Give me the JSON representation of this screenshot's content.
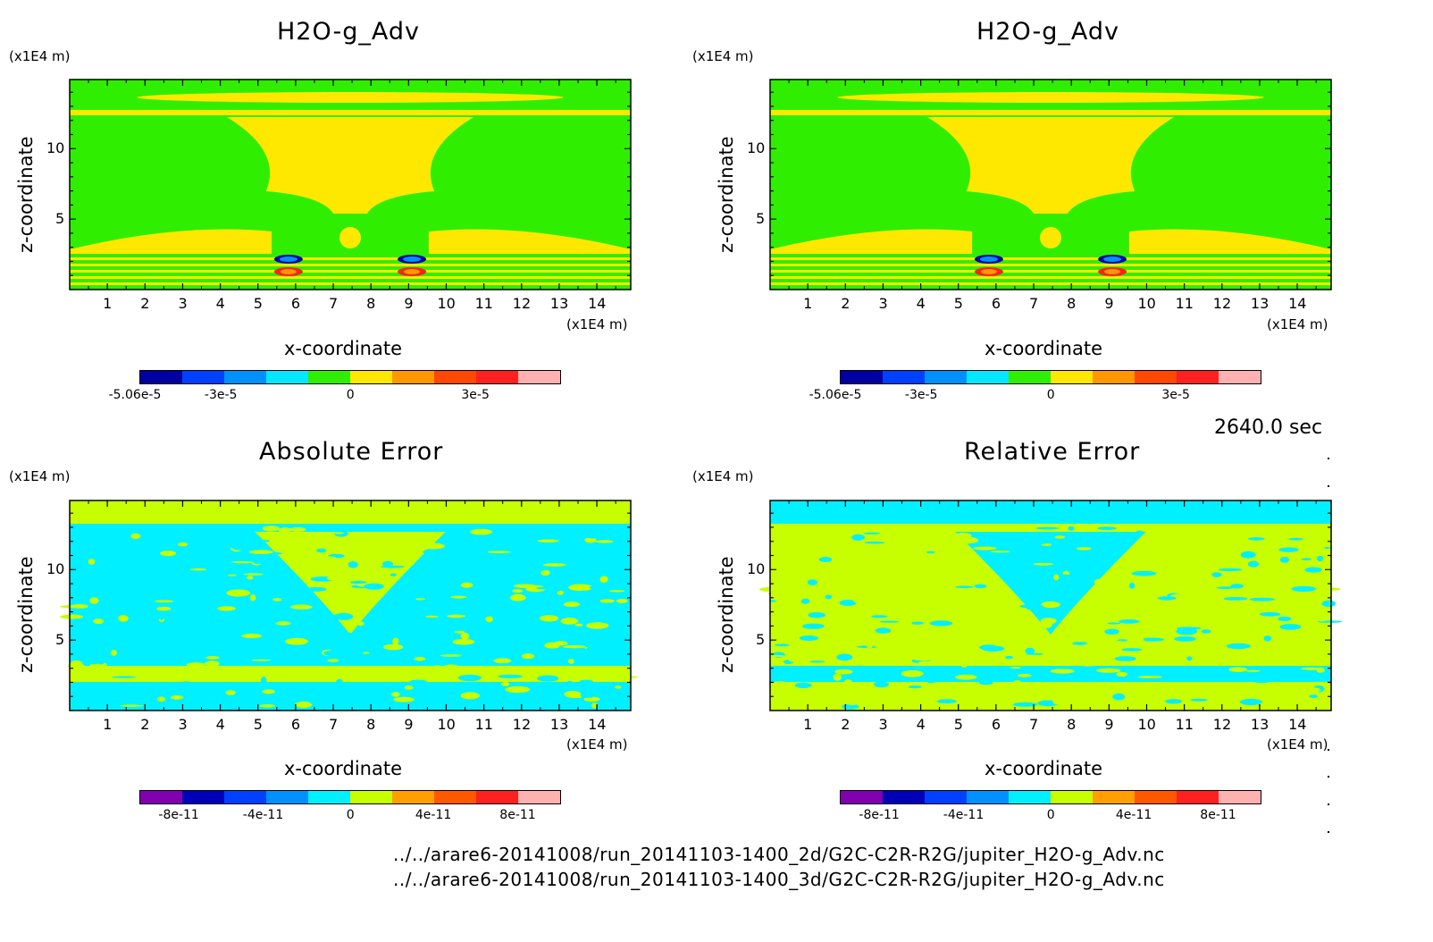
{
  "chart_data": [
    {
      "type": "heatmap",
      "title": "H2O-g_Adv",
      "xlabel": "x-coordinate",
      "ylabel": "z-coordinate",
      "xunit": "(x1E4 m)",
      "zunit": "(x1E4 m)",
      "xlim": [
        0,
        14.9
      ],
      "zlim": [
        0,
        14.9
      ],
      "xticks": [
        "1",
        "2",
        "3",
        "4",
        "5",
        "6",
        "7",
        "8",
        "9",
        "10",
        "11",
        "12",
        "13",
        "14"
      ],
      "zticks": [
        "5",
        "10"
      ],
      "colorbar": {
        "ticks": [
          "-5.06e-5",
          "-3e-5",
          "0",
          "3e-5"
        ],
        "colors": [
          "#0000a0",
          "#0040ff",
          "#0090ff",
          "#00e8ff",
          "#30ee00",
          "#ffe800",
          "#ff9800",
          "#ff4800",
          "#ff2020",
          "#ffb0b0"
        ]
      }
    },
    {
      "type": "heatmap",
      "title": "H2O-g_Adv",
      "xlabel": "x-coordinate",
      "ylabel": "z-coordinate",
      "xunit": "(x1E4 m)",
      "zunit": "(x1E4 m)",
      "xlim": [
        0,
        14.9
      ],
      "zlim": [
        0,
        14.9
      ],
      "xticks": [
        "1",
        "2",
        "3",
        "4",
        "5",
        "6",
        "7",
        "8",
        "9",
        "10",
        "11",
        "12",
        "13",
        "14"
      ],
      "zticks": [
        "5",
        "10"
      ],
      "colorbar": {
        "ticks": [
          "-5.06e-5",
          "-3e-5",
          "0",
          "3e-5"
        ],
        "colors": [
          "#0000a0",
          "#0040ff",
          "#0090ff",
          "#00e8ff",
          "#30ee00",
          "#ffe800",
          "#ff9800",
          "#ff4800",
          "#ff2020",
          "#ffb0b0"
        ]
      }
    },
    {
      "type": "heatmap",
      "title": "Absolute Error",
      "xlabel": "x-coordinate",
      "ylabel": "z-coordinate",
      "xunit": "(x1E4 m)",
      "zunit": "(x1E4 m)",
      "xlim": [
        0,
        14.9
      ],
      "zlim": [
        0,
        14.9
      ],
      "xticks": [
        "1",
        "2",
        "3",
        "4",
        "5",
        "6",
        "7",
        "8",
        "9",
        "10",
        "11",
        "12",
        "13",
        "14"
      ],
      "zticks": [
        "5",
        "10"
      ],
      "colorbar": {
        "ticks": [
          "-8e-11",
          "-4e-11",
          "0",
          "4e-11",
          "8e-11"
        ],
        "colors": [
          "#8000b0",
          "#0000b8",
          "#0040ff",
          "#0090ff",
          "#00f0ff",
          "#c8ff00",
          "#ffa000",
          "#ff5800",
          "#ff2020",
          "#ffb0b0"
        ]
      }
    },
    {
      "type": "heatmap",
      "title": "Relative Error",
      "xlabel": "x-coordinate",
      "ylabel": "z-coordinate",
      "xunit": "(x1E4 m)",
      "zunit": "(x1E4 m)",
      "xlim": [
        0,
        14.9
      ],
      "zlim": [
        0,
        14.9
      ],
      "xticks": [
        "1",
        "2",
        "3",
        "4",
        "5",
        "6",
        "7",
        "8",
        "9",
        "10",
        "11",
        "12",
        "13",
        "14"
      ],
      "zticks": [
        "5",
        "10"
      ],
      "colorbar": {
        "ticks": [
          "-8e-11",
          "-4e-11",
          "0",
          "4e-11",
          "8e-11"
        ],
        "colors": [
          "#8000b0",
          "#0000b8",
          "#0040ff",
          "#0090ff",
          "#00f0ff",
          "#c8ff00",
          "#ffa000",
          "#ff5800",
          "#ff2020",
          "#ffb0b0"
        ]
      }
    }
  ],
  "time_label": "2640.0 sec",
  "files": [
    "../../arare6-20141008/run_20141103-1400_2d/G2C-C2R-R2G/jupiter_H2O-g_Adv.nc",
    "../../arare6-20141008/run_20141103-1400_3d/G2C-C2R-R2G/jupiter_H2O-g_Adv.nc"
  ]
}
